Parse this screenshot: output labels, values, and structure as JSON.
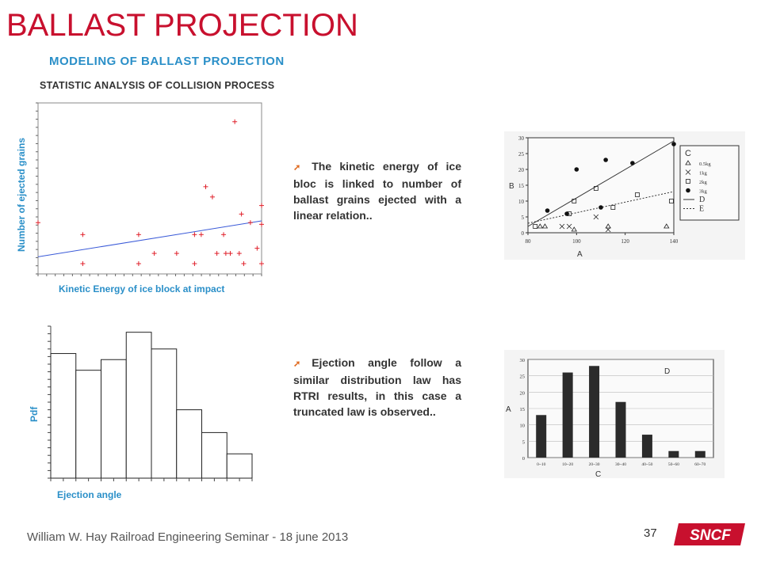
{
  "slide": {
    "title": "BALLAST PROJECTION",
    "subtitle": "MODELING OF BALLAST PROJECTION",
    "section": "STATISTIC ANALYSIS OF COLLISION PROCESS",
    "footer": "William W. Hay Railroad Engineering Seminar - 18 june 2013",
    "page_number": "37",
    "logo_text": "SNCF",
    "bullet1": "The kinetic energy of ice bloc is linked to number of ballast grains ejected with a linear relation..",
    "bullet2": "Ejection angle follow a similar distribution law has RTRI results, in this case a truncated law is observed.."
  },
  "colors": {
    "title": "#c8102e",
    "accent": "#2a8fc8",
    "bullet_arrow": "#e06a1f",
    "scatter": "#e0202a",
    "fit_line": "#3a5ad8"
  },
  "chart_data": [
    {
      "type": "scatter",
      "xlabel": "Kinetic Energy of ice block at impact",
      "ylabel": "Number of ejected grains",
      "points": [
        [
          0.0,
          0.3
        ],
        [
          0.2,
          0.23
        ],
        [
          0.2,
          0.06
        ],
        [
          0.45,
          0.23
        ],
        [
          0.45,
          0.06
        ],
        [
          0.52,
          0.12
        ],
        [
          0.62,
          0.12
        ],
        [
          0.7,
          0.23
        ],
        [
          0.7,
          0.06
        ],
        [
          0.73,
          0.23
        ],
        [
          0.75,
          0.51
        ],
        [
          0.78,
          0.45
        ],
        [
          0.8,
          0.12
        ],
        [
          0.83,
          0.23
        ],
        [
          0.84,
          0.12
        ],
        [
          0.86,
          0.12
        ],
        [
          0.88,
          0.89
        ],
        [
          0.9,
          0.12
        ],
        [
          0.91,
          0.35
        ],
        [
          0.92,
          0.06
        ],
        [
          0.95,
          0.3
        ],
        [
          0.98,
          0.15
        ],
        [
          1.0,
          0.29
        ],
        [
          1.0,
          0.06
        ],
        [
          1.0,
          0.4
        ]
      ],
      "fit": [
        [
          0.0,
          0.1
        ],
        [
          1.0,
          0.31
        ]
      ]
    },
    {
      "type": "bar",
      "xlabel": "Ejection angle",
      "ylabel": "Pdf",
      "values": [
        0.82,
        0.71,
        0.78,
        0.96,
        0.85,
        0.45,
        0.3,
        0.16
      ]
    },
    {
      "type": "scatter",
      "xlabel": "A",
      "ylabel": "B",
      "legend_title": "C",
      "legend": [
        "0.5kg",
        "1kg",
        "2kg",
        "3kg",
        "D",
        "E"
      ],
      "x_ticks": [
        "80",
        "100",
        "120",
        "140"
      ],
      "y_ticks": [
        "0",
        "5",
        "10",
        "15",
        "20",
        "25",
        "30"
      ],
      "xlim": [
        80,
        140
      ],
      "ylim": [
        0,
        30
      ],
      "series": [
        {
          "name": "0.5kg",
          "marker": "triangle",
          "x": [
            85,
            87,
            99,
            113,
            137
          ],
          "y": [
            2,
            2,
            1,
            2,
            2
          ]
        },
        {
          "name": "1kg",
          "marker": "x",
          "x": [
            94,
            97,
            108,
            113
          ],
          "y": [
            2,
            2,
            5,
            1
          ]
        },
        {
          "name": "2kg",
          "marker": "square",
          "x": [
            83,
            97,
            99,
            108,
            115,
            125,
            139
          ],
          "y": [
            2,
            6,
            10,
            14,
            8,
            12,
            10
          ]
        },
        {
          "name": "3kg",
          "marker": "dot",
          "x": [
            88,
            96,
            100,
            110,
            112,
            123,
            140
          ],
          "y": [
            7,
            6,
            20,
            8,
            23,
            22,
            28
          ]
        }
      ],
      "lines": [
        {
          "name": "D",
          "style": "solid",
          "x": [
            80,
            140
          ],
          "y": [
            2,
            29
          ]
        },
        {
          "name": "E",
          "style": "dashed",
          "x": [
            80,
            140
          ],
          "y": [
            3,
            13
          ]
        }
      ]
    },
    {
      "type": "bar",
      "title": "D",
      "xlabel": "C",
      "ylabel": "A",
      "categories": [
        "0~10",
        "10~20",
        "20~30",
        "30~40",
        "40~50",
        "50~60",
        "60~70"
      ],
      "values": [
        13,
        26,
        28,
        17,
        7,
        2,
        2
      ],
      "ylim": [
        0,
        30
      ],
      "y_ticks": [
        "0",
        "5",
        "10",
        "15",
        "20",
        "25",
        "30"
      ]
    }
  ]
}
